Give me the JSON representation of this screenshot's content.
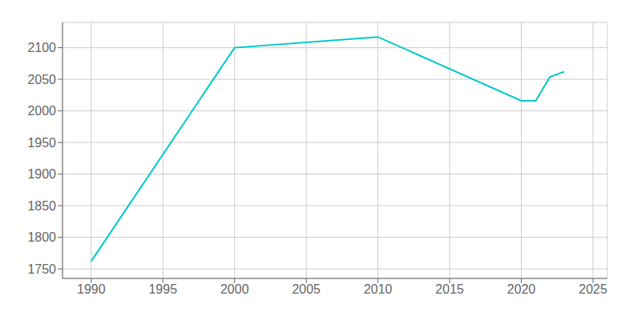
{
  "chart_data": {
    "type": "line",
    "x": [
      1990,
      2000,
      2010,
      2020,
      2021,
      2022,
      2023
    ],
    "values": [
      1762,
      2100,
      2117,
      2016,
      2016,
      2054,
      2062
    ],
    "color": "#00c8c8",
    "xlim": [
      1988,
      2026
    ],
    "ylim": [
      1735,
      2140
    ],
    "xticks": [
      1990,
      1995,
      2000,
      2005,
      2010,
      2015,
      2020,
      2025
    ],
    "yticks": [
      1750,
      1800,
      1850,
      1900,
      1950,
      2000,
      2050,
      2100
    ],
    "grid": true
  }
}
